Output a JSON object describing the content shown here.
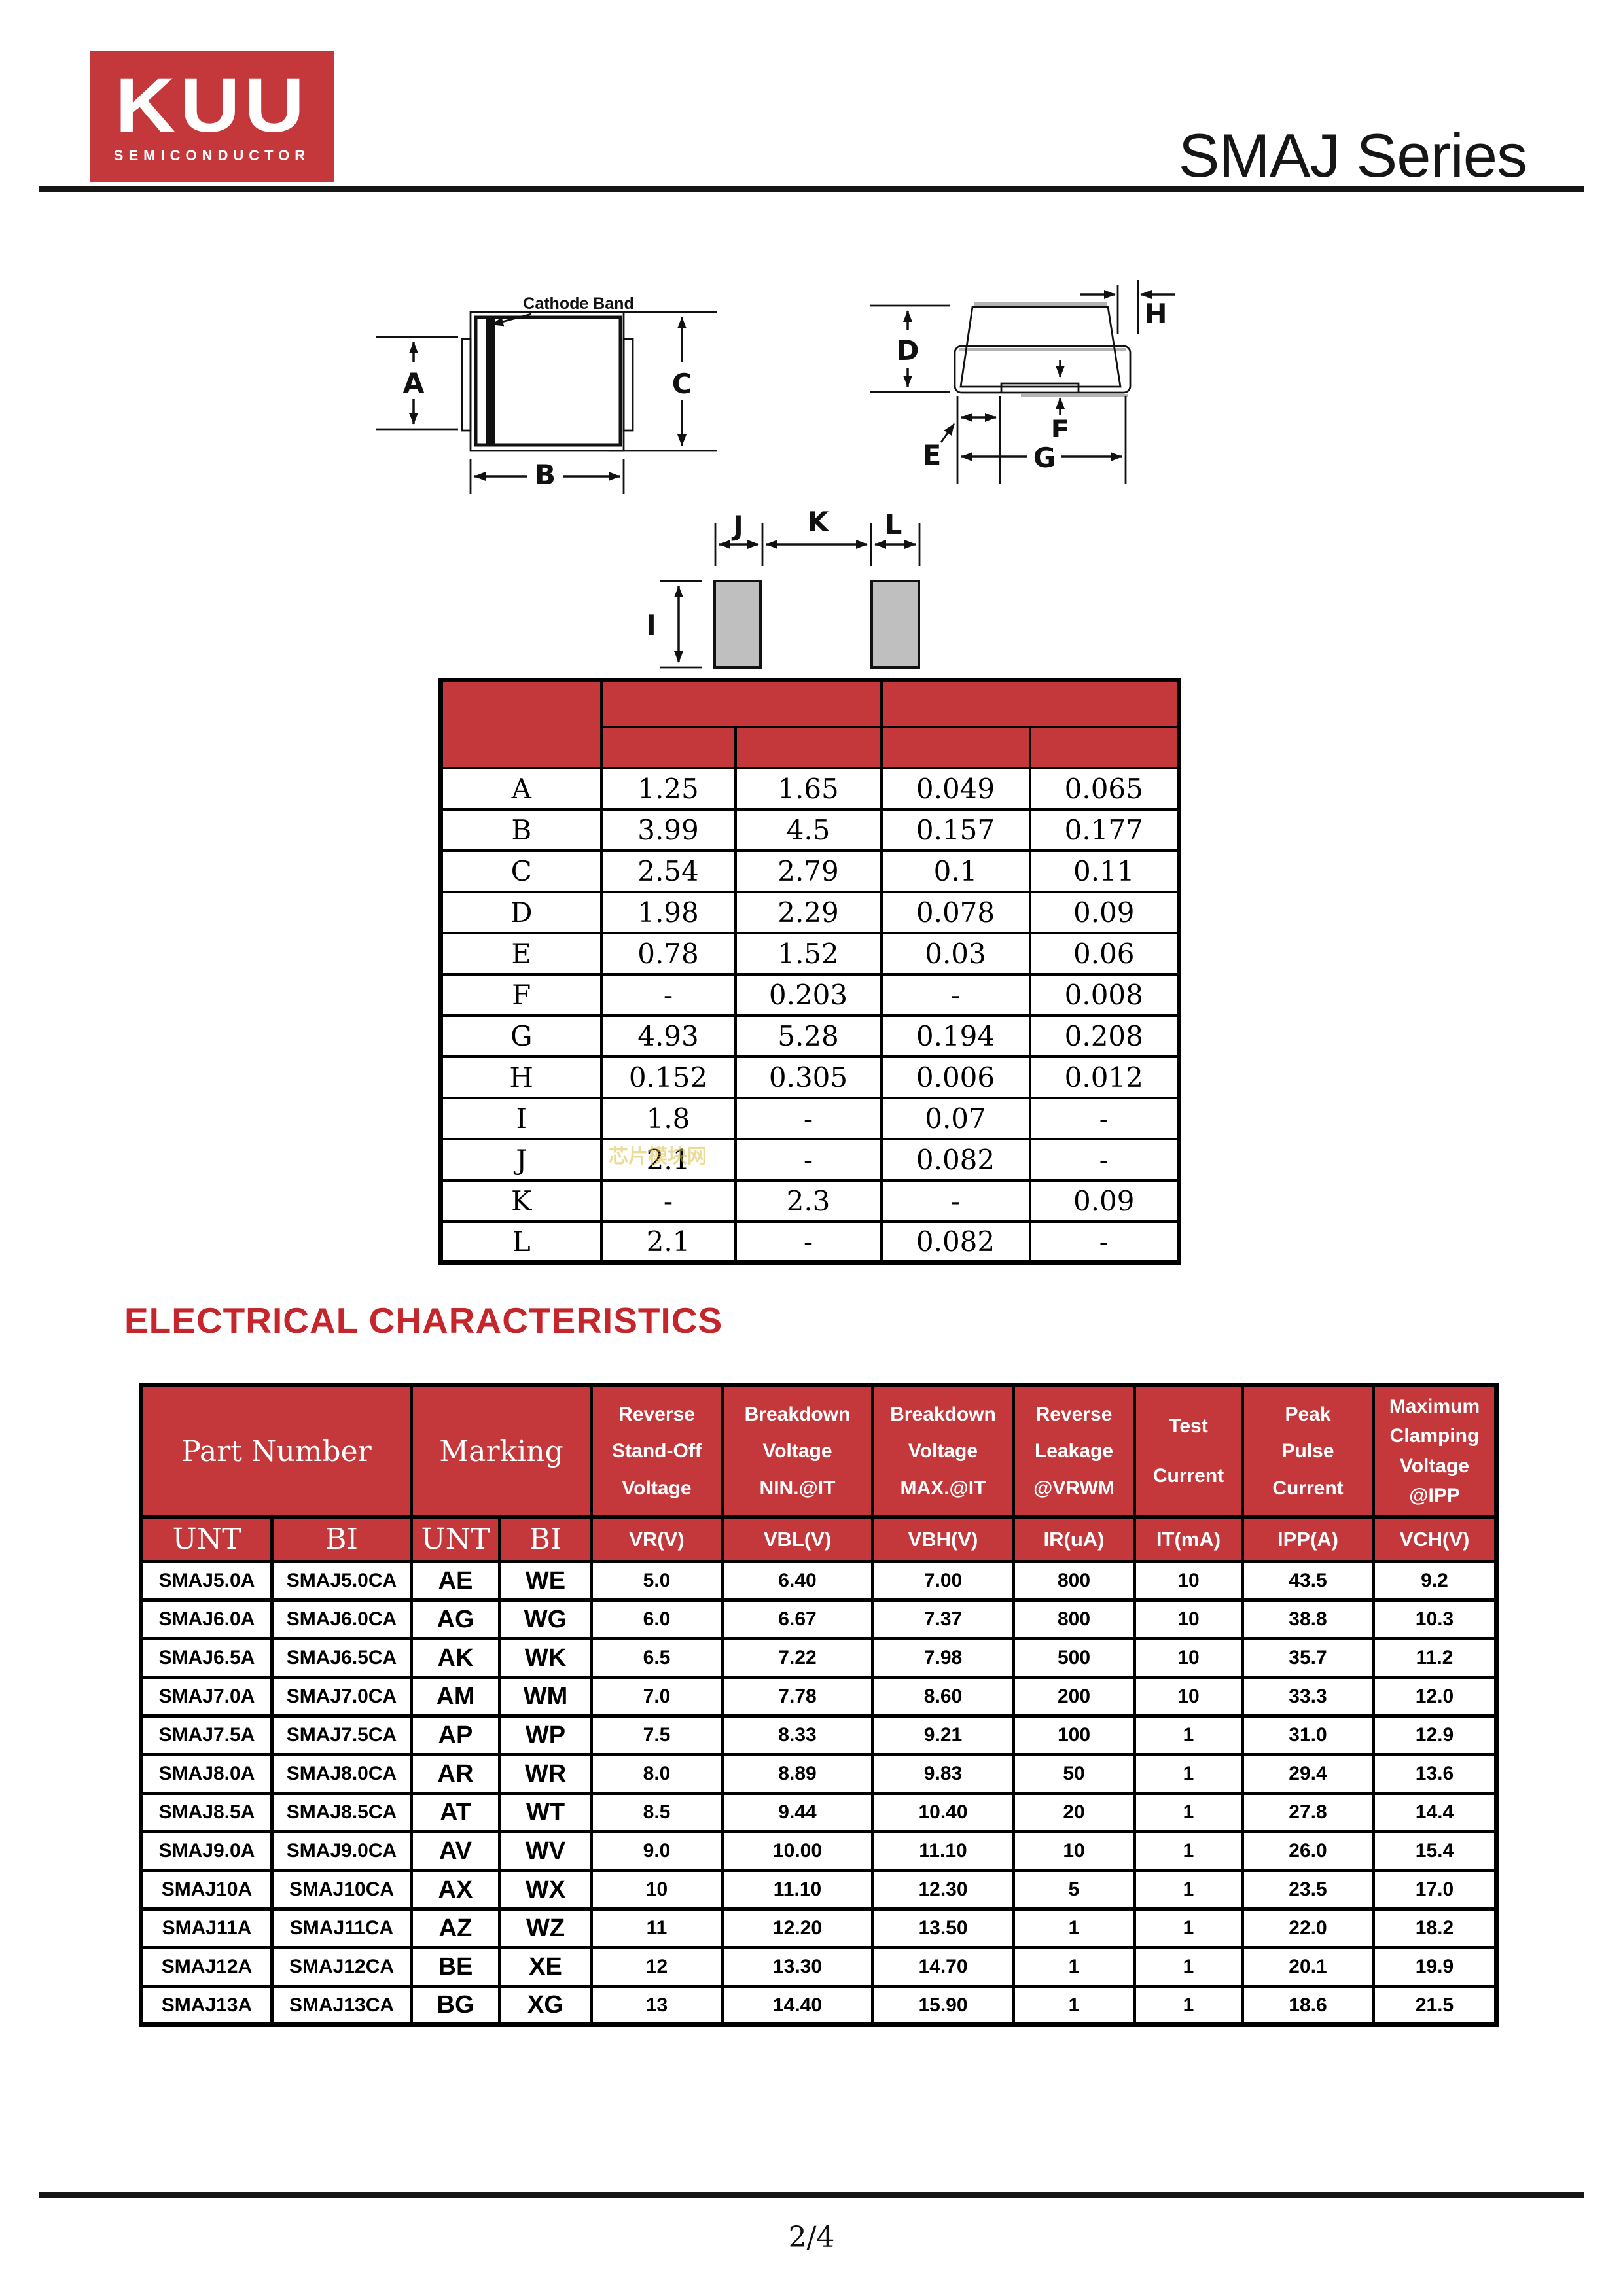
{
  "colors": {
    "brand_red": "#c4383c",
    "heading_red": "#c5262b"
  },
  "header": {
    "logo_text": "KUU",
    "logo_subtext": "SEMICONDUCTOR",
    "title": "SMAJ Series"
  },
  "package_drawing": {
    "cathode_band_label": "Cathode Band",
    "dim_labels": {
      "a": "A",
      "b": "B",
      "c": "C",
      "d": "D",
      "e": "E",
      "f": "F",
      "g": "G",
      "h": "H",
      "i": "I",
      "j": "J",
      "k": "K",
      "l": "L"
    }
  },
  "dimensions_table": {
    "rows": [
      [
        "A",
        "1.25",
        "1.65",
        "0.049",
        "0.065"
      ],
      [
        "B",
        "3.99",
        "4.5",
        "0.157",
        "0.177"
      ],
      [
        "C",
        "2.54",
        "2.79",
        "0.1",
        "0.11"
      ],
      [
        "D",
        "1.98",
        "2.29",
        "0.078",
        "0.09"
      ],
      [
        "E",
        "0.78",
        "1.52",
        "0.03",
        "0.06"
      ],
      [
        "F",
        "-",
        "0.203",
        "-",
        "0.008"
      ],
      [
        "G",
        "4.93",
        "5.28",
        "0.194",
        "0.208"
      ],
      [
        "H",
        "0.152",
        "0.305",
        "0.006",
        "0.012"
      ],
      [
        "I",
        "1.8",
        "-",
        "0.07",
        "-"
      ],
      [
        "J",
        "2.1",
        "-",
        "0.082",
        "-"
      ],
      [
        "K",
        "-",
        "2.3",
        "-",
        "0.09"
      ],
      [
        "L",
        "2.1",
        "-",
        "0.082",
        "-"
      ]
    ]
  },
  "watermark": "芯片模块网",
  "section": {
    "title": "ELECTRICAL CHARACTERISTICS"
  },
  "electrical_table": {
    "group_headers": [
      {
        "lines": [
          "Part Number"
        ],
        "colspan": 2,
        "serif": true
      },
      {
        "lines": [
          "Marking"
        ],
        "colspan": 2,
        "serif": true
      },
      {
        "lines": [
          "Reverse",
          "Stand-Off",
          "Voltage"
        ]
      },
      {
        "lines": [
          "Breakdown",
          "Voltage",
          "NIN.@IT"
        ]
      },
      {
        "lines": [
          "Breakdown",
          "Voltage",
          "MAX.@IT"
        ]
      },
      {
        "lines": [
          "Reverse",
          "Leakage",
          "@VRWM"
        ]
      },
      {
        "lines": [
          "Test",
          "Current"
        ]
      },
      {
        "lines": [
          "Peak",
          "Pulse",
          "Current"
        ]
      },
      {
        "lines": [
          "Maximum",
          "Clamping",
          "Voltage",
          "@IPP"
        ],
        "tight": true
      }
    ],
    "sub_headers": [
      {
        "label": "UNT",
        "serif": true
      },
      {
        "label": "BI",
        "serif": true
      },
      {
        "label": "UNT",
        "serif": true
      },
      {
        "label": "BI",
        "serif": true
      },
      {
        "label": "VR(V)"
      },
      {
        "label": "VBL(V)"
      },
      {
        "label": "VBH(V)"
      },
      {
        "label": "IR(uA)"
      },
      {
        "label": "IT(mA)"
      },
      {
        "label": "IPP(A)"
      },
      {
        "label": "VCH(V)"
      }
    ],
    "rows": [
      [
        "SMAJ5.0A",
        "SMAJ5.0CA",
        "AE",
        "WE",
        "5.0",
        "6.40",
        "7.00",
        "800",
        "10",
        "43.5",
        "9.2"
      ],
      [
        "SMAJ6.0A",
        "SMAJ6.0CA",
        "AG",
        "WG",
        "6.0",
        "6.67",
        "7.37",
        "800",
        "10",
        "38.8",
        "10.3"
      ],
      [
        "SMAJ6.5A",
        "SMAJ6.5CA",
        "AK",
        "WK",
        "6.5",
        "7.22",
        "7.98",
        "500",
        "10",
        "35.7",
        "11.2"
      ],
      [
        "SMAJ7.0A",
        "SMAJ7.0CA",
        "AM",
        "WM",
        "7.0",
        "7.78",
        "8.60",
        "200",
        "10",
        "33.3",
        "12.0"
      ],
      [
        "SMAJ7.5A",
        "SMAJ7.5CA",
        "AP",
        "WP",
        "7.5",
        "8.33",
        "9.21",
        "100",
        "1",
        "31.0",
        "12.9"
      ],
      [
        "SMAJ8.0A",
        "SMAJ8.0CA",
        "AR",
        "WR",
        "8.0",
        "8.89",
        "9.83",
        "50",
        "1",
        "29.4",
        "13.6"
      ],
      [
        "SMAJ8.5A",
        "SMAJ8.5CA",
        "AT",
        "WT",
        "8.5",
        "9.44",
        "10.40",
        "20",
        "1",
        "27.8",
        "14.4"
      ],
      [
        "SMAJ9.0A",
        "SMAJ9.0CA",
        "AV",
        "WV",
        "9.0",
        "10.00",
        "11.10",
        "10",
        "1",
        "26.0",
        "15.4"
      ],
      [
        "SMAJ10A",
        "SMAJ10CA",
        "AX",
        "WX",
        "10",
        "11.10",
        "12.30",
        "5",
        "1",
        "23.5",
        "17.0"
      ],
      [
        "SMAJ11A",
        "SMAJ11CA",
        "AZ",
        "WZ",
        "11",
        "12.20",
        "13.50",
        "1",
        "1",
        "22.0",
        "18.2"
      ],
      [
        "SMAJ12A",
        "SMAJ12CA",
        "BE",
        "XE",
        "12",
        "13.30",
        "14.70",
        "1",
        "1",
        "20.1",
        "19.9"
      ],
      [
        "SMAJ13A",
        "SMAJ13CA",
        "BG",
        "XG",
        "13",
        "14.40",
        "15.90",
        "1",
        "1",
        "18.6",
        "21.5"
      ]
    ]
  },
  "footer": {
    "page_number": "2/4"
  }
}
